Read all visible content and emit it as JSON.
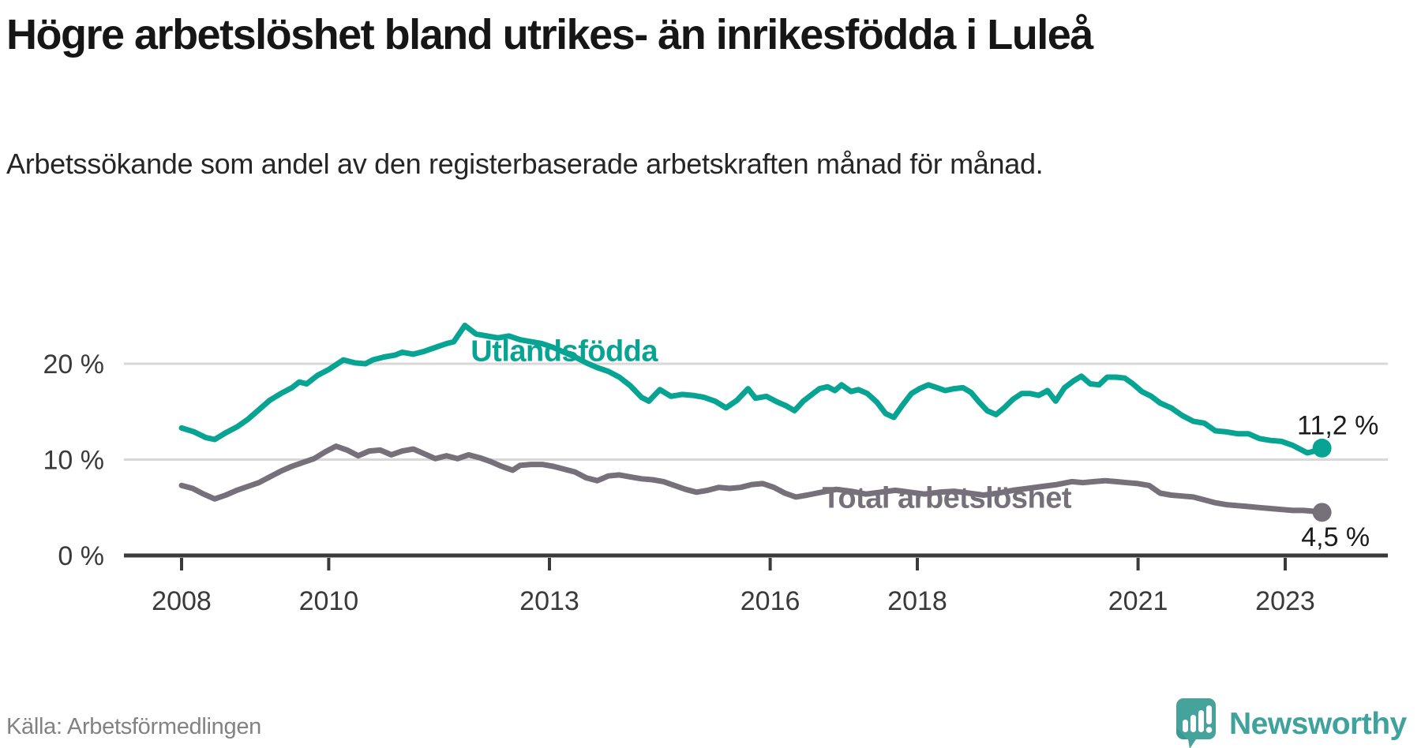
{
  "header": {
    "title": "Högre arbetslöshet bland utrikes- än inrikesfödda i Luleå",
    "subtitle": "Arbetssökande som andel av den registerbaserade arbetskraften månad för månad."
  },
  "footer": {
    "source": "Källa: Arbetsförmedlingen",
    "brand": "Newsworthy"
  },
  "colors": {
    "foreign_born": "#07a493",
    "total": "#75707a",
    "grid": "#d8d8d8",
    "axis": "#3a3a3a",
    "tick_text": "#3a3a3a",
    "value_label": "#1c1c1c",
    "brand_teal": "#3fa29c",
    "logo_bg": "#45a39c",
    "logo_glyph": "#ffffff"
  },
  "chart_data": {
    "type": "line",
    "title": "Högre arbetslöshet bland utrikes- än inrikesfödda i Luleå",
    "subtitle": "Arbetssökande som andel av den registerbaserade arbetskraften månad för månad.",
    "source": "Källa: Arbetsförmedlingen",
    "grid": "horizontal",
    "legend_position": "inline-labels",
    "xlabel": "",
    "ylabel": "",
    "xlim": [
      2007.8,
      2024.4
    ],
    "ylim": [
      0,
      26
    ],
    "xticks": [
      {
        "value": 2008,
        "label": "2008"
      },
      {
        "value": 2010,
        "label": "2010"
      },
      {
        "value": 2013,
        "label": "2013"
      },
      {
        "value": 2016,
        "label": "2016"
      },
      {
        "value": 2018,
        "label": "2018"
      },
      {
        "value": 2021,
        "label": "2021"
      },
      {
        "value": 2023,
        "label": "2023"
      }
    ],
    "yticks": [
      {
        "value": 0,
        "label": "0 %"
      },
      {
        "value": 10,
        "label": "10 %"
      },
      {
        "value": 20,
        "label": "20 %"
      }
    ],
    "series": [
      {
        "name": "Utlandsfödda",
        "color": "#07a493",
        "label_at": [
          2013.2,
          20.3
        ],
        "end_label": "11,2 %",
        "end_label_at": [
          2024.27,
          12.65
        ],
        "last_value": 11.2,
        "points": [
          [
            2008.0,
            13.3
          ],
          [
            2008.17,
            12.9
          ],
          [
            2008.33,
            12.3
          ],
          [
            2008.45,
            12.1
          ],
          [
            2008.6,
            12.8
          ],
          [
            2008.75,
            13.4
          ],
          [
            2008.9,
            14.2
          ],
          [
            2009.05,
            15.2
          ],
          [
            2009.2,
            16.2
          ],
          [
            2009.35,
            16.9
          ],
          [
            2009.5,
            17.5
          ],
          [
            2009.6,
            18.1
          ],
          [
            2009.7,
            17.9
          ],
          [
            2009.85,
            18.8
          ],
          [
            2010.0,
            19.4
          ],
          [
            2010.1,
            19.9
          ],
          [
            2010.2,
            20.4
          ],
          [
            2010.35,
            20.1
          ],
          [
            2010.5,
            20.0
          ],
          [
            2010.6,
            20.4
          ],
          [
            2010.75,
            20.7
          ],
          [
            2010.9,
            20.9
          ],
          [
            2011.0,
            21.2
          ],
          [
            2011.15,
            21.0
          ],
          [
            2011.3,
            21.3
          ],
          [
            2011.45,
            21.7
          ],
          [
            2011.6,
            22.1
          ],
          [
            2011.7,
            22.3
          ],
          [
            2011.85,
            24.0
          ],
          [
            2012.0,
            23.1
          ],
          [
            2012.15,
            22.9
          ],
          [
            2012.3,
            22.7
          ],
          [
            2012.45,
            22.9
          ],
          [
            2012.6,
            22.5
          ],
          [
            2012.75,
            22.3
          ],
          [
            2012.9,
            22.1
          ],
          [
            2013.05,
            21.7
          ],
          [
            2013.2,
            21.2
          ],
          [
            2013.35,
            20.7
          ],
          [
            2013.5,
            20.1
          ],
          [
            2013.65,
            19.6
          ],
          [
            2013.8,
            19.2
          ],
          [
            2013.95,
            18.6
          ],
          [
            2014.1,
            17.7
          ],
          [
            2014.25,
            16.5
          ],
          [
            2014.35,
            16.1
          ],
          [
            2014.5,
            17.3
          ],
          [
            2014.65,
            16.6
          ],
          [
            2014.8,
            16.8
          ],
          [
            2014.95,
            16.7
          ],
          [
            2015.1,
            16.5
          ],
          [
            2015.25,
            16.1
          ],
          [
            2015.4,
            15.4
          ],
          [
            2015.55,
            16.2
          ],
          [
            2015.7,
            17.4
          ],
          [
            2015.8,
            16.4
          ],
          [
            2015.95,
            16.6
          ],
          [
            2016.1,
            16.0
          ],
          [
            2016.22,
            15.6
          ],
          [
            2016.33,
            15.1
          ],
          [
            2016.45,
            16.1
          ],
          [
            2016.55,
            16.7
          ],
          [
            2016.67,
            17.4
          ],
          [
            2016.78,
            17.6
          ],
          [
            2016.88,
            17.2
          ],
          [
            2016.97,
            17.8
          ],
          [
            2017.1,
            17.1
          ],
          [
            2017.2,
            17.3
          ],
          [
            2017.32,
            16.9
          ],
          [
            2017.45,
            16.0
          ],
          [
            2017.57,
            14.8
          ],
          [
            2017.68,
            14.4
          ],
          [
            2017.8,
            15.7
          ],
          [
            2017.92,
            16.9
          ],
          [
            2018.03,
            17.4
          ],
          [
            2018.15,
            17.8
          ],
          [
            2018.27,
            17.5
          ],
          [
            2018.38,
            17.2
          ],
          [
            2018.5,
            17.4
          ],
          [
            2018.62,
            17.5
          ],
          [
            2018.73,
            17.0
          ],
          [
            2018.84,
            16.0
          ],
          [
            2018.95,
            15.1
          ],
          [
            2019.07,
            14.7
          ],
          [
            2019.18,
            15.4
          ],
          [
            2019.3,
            16.3
          ],
          [
            2019.42,
            16.9
          ],
          [
            2019.53,
            16.9
          ],
          [
            2019.65,
            16.7
          ],
          [
            2019.77,
            17.2
          ],
          [
            2019.88,
            16.1
          ],
          [
            2020.0,
            17.5
          ],
          [
            2020.12,
            18.2
          ],
          [
            2020.23,
            18.7
          ],
          [
            2020.35,
            17.9
          ],
          [
            2020.47,
            17.8
          ],
          [
            2020.58,
            18.6
          ],
          [
            2020.7,
            18.6
          ],
          [
            2020.82,
            18.5
          ],
          [
            2020.93,
            17.9
          ],
          [
            2021.05,
            17.1
          ],
          [
            2021.18,
            16.6
          ],
          [
            2021.3,
            15.9
          ],
          [
            2021.45,
            15.4
          ],
          [
            2021.6,
            14.6
          ],
          [
            2021.75,
            14.0
          ],
          [
            2021.9,
            13.8
          ],
          [
            2022.05,
            13.0
          ],
          [
            2022.2,
            12.9
          ],
          [
            2022.35,
            12.7
          ],
          [
            2022.5,
            12.7
          ],
          [
            2022.65,
            12.2
          ],
          [
            2022.8,
            12.0
          ],
          [
            2022.95,
            11.9
          ],
          [
            2023.1,
            11.5
          ],
          [
            2023.2,
            11.1
          ],
          [
            2023.3,
            10.7
          ],
          [
            2023.4,
            10.9
          ],
          [
            2023.5,
            11.2
          ]
        ]
      },
      {
        "name": "Total arbetslöshet",
        "color": "#75707a",
        "label_at": [
          2018.4,
          5.0
        ],
        "end_label": "4,5 %",
        "end_label_at": [
          2024.15,
          1.0
        ],
        "last_value": 4.5,
        "points": [
          [
            2008.0,
            7.3
          ],
          [
            2008.15,
            7.0
          ],
          [
            2008.3,
            6.4
          ],
          [
            2008.45,
            5.9
          ],
          [
            2008.6,
            6.3
          ],
          [
            2008.75,
            6.8
          ],
          [
            2008.9,
            7.2
          ],
          [
            2009.05,
            7.6
          ],
          [
            2009.2,
            8.2
          ],
          [
            2009.35,
            8.8
          ],
          [
            2009.5,
            9.3
          ],
          [
            2009.65,
            9.7
          ],
          [
            2009.8,
            10.1
          ],
          [
            2009.95,
            10.8
          ],
          [
            2010.1,
            11.4
          ],
          [
            2010.25,
            11.0
          ],
          [
            2010.4,
            10.4
          ],
          [
            2010.55,
            10.9
          ],
          [
            2010.7,
            11.0
          ],
          [
            2010.85,
            10.5
          ],
          [
            2011.0,
            10.9
          ],
          [
            2011.15,
            11.1
          ],
          [
            2011.3,
            10.6
          ],
          [
            2011.45,
            10.1
          ],
          [
            2011.6,
            10.4
          ],
          [
            2011.75,
            10.1
          ],
          [
            2011.9,
            10.5
          ],
          [
            2012.05,
            10.2
          ],
          [
            2012.2,
            9.8
          ],
          [
            2012.35,
            9.3
          ],
          [
            2012.5,
            8.9
          ],
          [
            2012.6,
            9.4
          ],
          [
            2012.75,
            9.5
          ],
          [
            2012.9,
            9.5
          ],
          [
            2013.05,
            9.3
          ],
          [
            2013.2,
            9.0
          ],
          [
            2013.35,
            8.7
          ],
          [
            2013.5,
            8.1
          ],
          [
            2013.65,
            7.8
          ],
          [
            2013.8,
            8.3
          ],
          [
            2013.95,
            8.4
          ],
          [
            2014.1,
            8.2
          ],
          [
            2014.25,
            8.0
          ],
          [
            2014.4,
            7.9
          ],
          [
            2014.55,
            7.7
          ],
          [
            2014.7,
            7.3
          ],
          [
            2014.85,
            6.9
          ],
          [
            2015.0,
            6.6
          ],
          [
            2015.15,
            6.8
          ],
          [
            2015.3,
            7.1
          ],
          [
            2015.45,
            7.0
          ],
          [
            2015.6,
            7.1
          ],
          [
            2015.75,
            7.4
          ],
          [
            2015.9,
            7.5
          ],
          [
            2016.05,
            7.1
          ],
          [
            2016.2,
            6.5
          ],
          [
            2016.35,
            6.1
          ],
          [
            2016.5,
            6.3
          ],
          [
            2016.7,
            6.6
          ],
          [
            2016.9,
            6.9
          ],
          [
            2017.1,
            6.7
          ],
          [
            2017.3,
            6.4
          ],
          [
            2017.5,
            6.6
          ],
          [
            2017.7,
            6.8
          ],
          [
            2017.9,
            6.6
          ],
          [
            2018.1,
            6.4
          ],
          [
            2018.3,
            6.6
          ],
          [
            2018.5,
            6.7
          ],
          [
            2018.7,
            6.5
          ],
          [
            2018.9,
            6.3
          ],
          [
            2019.1,
            6.5
          ],
          [
            2019.3,
            6.8
          ],
          [
            2019.5,
            7.0
          ],
          [
            2019.7,
            7.2
          ],
          [
            2019.9,
            7.4
          ],
          [
            2020.1,
            7.7
          ],
          [
            2020.25,
            7.6
          ],
          [
            2020.4,
            7.7
          ],
          [
            2020.55,
            7.8
          ],
          [
            2020.7,
            7.7
          ],
          [
            2020.85,
            7.6
          ],
          [
            2021.0,
            7.5
          ],
          [
            2021.15,
            7.3
          ],
          [
            2021.3,
            6.5
          ],
          [
            2021.45,
            6.3
          ],
          [
            2021.6,
            6.2
          ],
          [
            2021.75,
            6.1
          ],
          [
            2021.9,
            5.8
          ],
          [
            2022.05,
            5.5
          ],
          [
            2022.2,
            5.3
          ],
          [
            2022.35,
            5.2
          ],
          [
            2022.5,
            5.1
          ],
          [
            2022.65,
            5.0
          ],
          [
            2022.8,
            4.9
          ],
          [
            2022.95,
            4.8
          ],
          [
            2023.1,
            4.7
          ],
          [
            2023.25,
            4.7
          ],
          [
            2023.4,
            4.6
          ],
          [
            2023.5,
            4.5
          ]
        ]
      }
    ]
  }
}
